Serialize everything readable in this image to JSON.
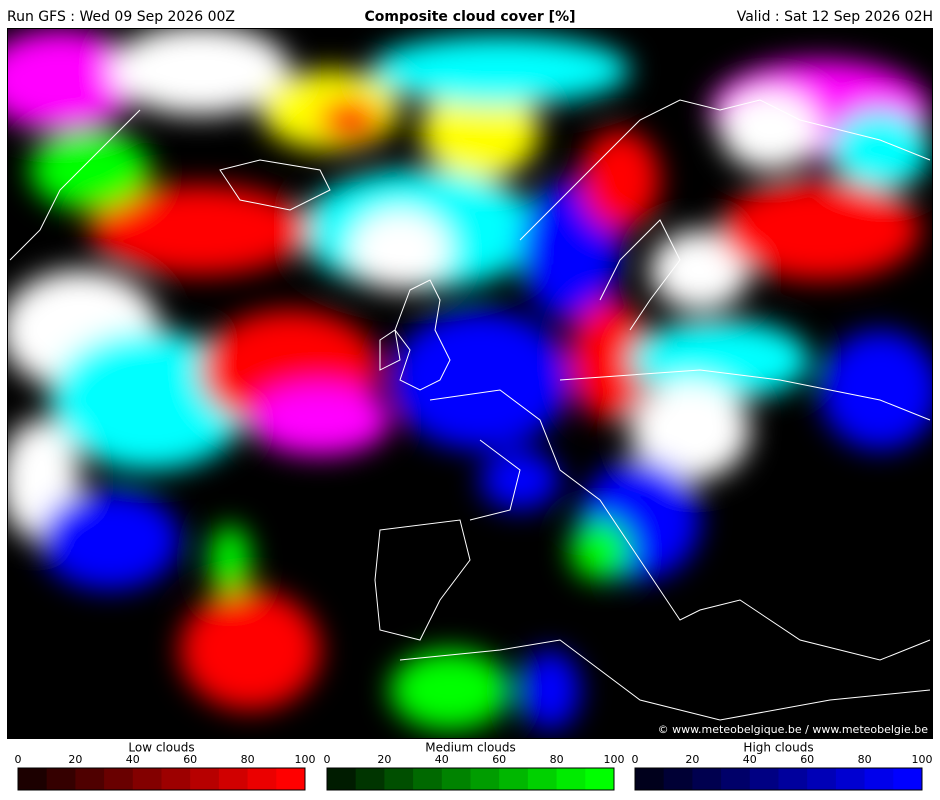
{
  "header": {
    "run": "Run GFS : Wed 09 Sep 2026 00Z",
    "title": "Composite cloud cover [%]",
    "valid": "Valid : Sat 12 Sep 2026 02H"
  },
  "credit": "© www.meteobelgique.be / www.meteobelgie.be",
  "legends": [
    {
      "label": "Low clouds",
      "ticks": [
        0,
        20,
        40,
        60,
        80,
        100
      ],
      "colors": [
        "#1c0000",
        "#350000",
        "#4f0000",
        "#690000",
        "#830000",
        "#9d0000",
        "#b70000",
        "#d10000",
        "#eb0000",
        "#ff0000"
      ]
    },
    {
      "label": "Medium clouds",
      "ticks": [
        0,
        20,
        40,
        60,
        80,
        100
      ],
      "colors": [
        "#001c00",
        "#003500",
        "#004f00",
        "#006900",
        "#008300",
        "#009d00",
        "#00b700",
        "#00d100",
        "#00eb00",
        "#00ff00"
      ]
    },
    {
      "label": "High clouds",
      "ticks": [
        0,
        20,
        40,
        60,
        80,
        100
      ],
      "colors": [
        "#00001c",
        "#000035",
        "#00004f",
        "#000069",
        "#000083",
        "#00009d",
        "#0000b7",
        "#0000d1",
        "#0000eb",
        "#0000ff"
      ]
    }
  ]
}
